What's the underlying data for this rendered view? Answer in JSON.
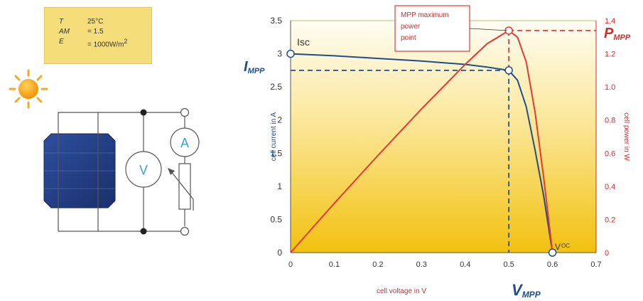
{
  "conditions": [
    {
      "symbol": "T",
      "value": "25°C"
    },
    {
      "symbol": "AM",
      "value": "= 1.5"
    },
    {
      "symbol": "E",
      "value": "= 1000W/m",
      "sup": "2"
    }
  ],
  "circuit": {
    "voltmeter_label": "V",
    "ammeter_label": "A"
  },
  "chart_data": {
    "type": "line",
    "xlabel": "cell voltage in V",
    "ylabel": "cell current in A",
    "y2label": "cell power in W",
    "xlim": [
      0,
      0.7
    ],
    "ylim": [
      0,
      3.5
    ],
    "y2lim": [
      0,
      1.4
    ],
    "x_ticks": [
      "0",
      "0.1",
      "0.2",
      "0.3",
      "0.4",
      "0.5",
      "0.6",
      "0.7"
    ],
    "y_ticks": [
      "0",
      "0.5",
      "1",
      "1.5",
      "2",
      "2.5",
      "3",
      "3.5"
    ],
    "y2_ticks": [
      "0",
      "0.2",
      "0.4",
      "0.6",
      "0.8",
      "1.0",
      "1.2",
      "1.4"
    ],
    "series": [
      {
        "axis": "left",
        "color": "#1f4e8c",
        "x": [
          0,
          0.1,
          0.2,
          0.3,
          0.4,
          0.45,
          0.5,
          0.52,
          0.54,
          0.56,
          0.58,
          0.6
        ],
        "y": [
          3.0,
          2.97,
          2.93,
          2.89,
          2.84,
          2.8,
          2.75,
          2.6,
          2.2,
          1.55,
          0.85,
          0.0
        ]
      },
      {
        "axis": "right",
        "color": "#e53935",
        "x": [
          0,
          0.1,
          0.2,
          0.3,
          0.4,
          0.45,
          0.5,
          0.52,
          0.54,
          0.56,
          0.58,
          0.6
        ],
        "y": [
          0.0,
          0.297,
          0.586,
          0.867,
          1.136,
          1.26,
          1.34,
          1.3,
          1.15,
          0.85,
          0.45,
          0.0
        ]
      }
    ],
    "points": {
      "isc": {
        "x": 0,
        "y": 3.0,
        "label": "Isc"
      },
      "mpp_current": {
        "x": 0.5,
        "y": 2.75
      },
      "voc": {
        "x": 0.6,
        "y": 0.0,
        "label_main": "V",
        "label_sub": "OC"
      },
      "mpp_power": {
        "x": 0.5,
        "y2": 1.34
      }
    },
    "annotations": {
      "impp_main": "I",
      "impp_sub": "MPP",
      "pmpp_main": "P",
      "pmpp_sub": "MPP",
      "vmpp_main": "V",
      "vmpp_sub": "MPP",
      "mpp_box": [
        "MPP maximum",
        "power",
        "point"
      ]
    }
  }
}
